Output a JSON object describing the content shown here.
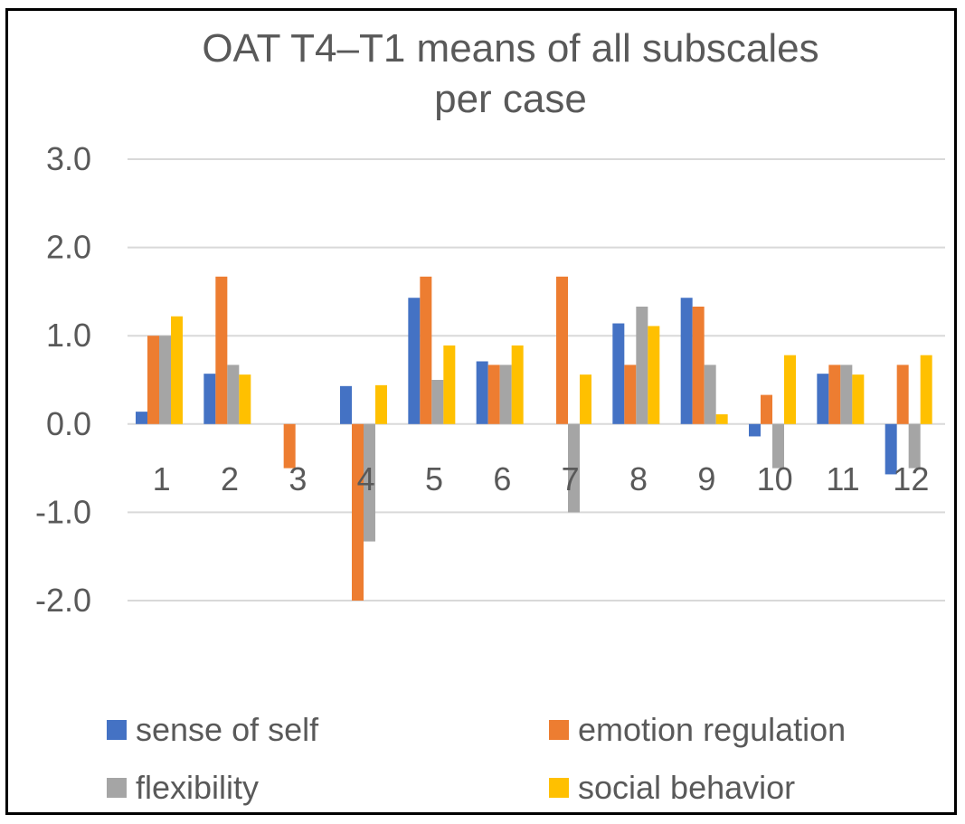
{
  "chart_data": {
    "type": "bar",
    "title_line1": "OAT T4–T1 means of all subscales",
    "title_line2": "per case",
    "categories": [
      "1",
      "2",
      "3",
      "4",
      "5",
      "6",
      "7",
      "8",
      "9",
      "10",
      "11",
      "12"
    ],
    "ylim": [
      -2,
      3
    ],
    "yticks": [
      3,
      2,
      1,
      0,
      -1,
      -2
    ],
    "ytick_labels": [
      "3.0",
      "2.0",
      "1.0",
      "0.0",
      "-1.0",
      "-2.0"
    ],
    "grid": true,
    "legend_position": "bottom",
    "series": [
      {
        "name": "sense of self",
        "color": "#4472C4",
        "values": [
          0.14,
          0.57,
          0,
          0.43,
          1.43,
          0.71,
          0,
          1.14,
          1.43,
          -0.14,
          0.57,
          -0.57
        ]
      },
      {
        "name": "emotion regulation",
        "color": "#ED7D31",
        "values": [
          1.0,
          1.67,
          -0.5,
          -2.0,
          1.67,
          0.67,
          1.67,
          0.67,
          1.33,
          0.33,
          0.67,
          0.67
        ]
      },
      {
        "name": "flexibility",
        "color": "#A5A5A5",
        "values": [
          1.0,
          0.67,
          0,
          -1.33,
          0.5,
          0.67,
          -1.0,
          1.33,
          0.67,
          -0.5,
          0.67,
          -0.5
        ]
      },
      {
        "name": "social behavior",
        "color": "#FFC000",
        "values": [
          1.22,
          0.56,
          0,
          0.44,
          0.89,
          0.89,
          0.56,
          1.11,
          0.11,
          0.78,
          0.56,
          0.78
        ]
      }
    ]
  }
}
